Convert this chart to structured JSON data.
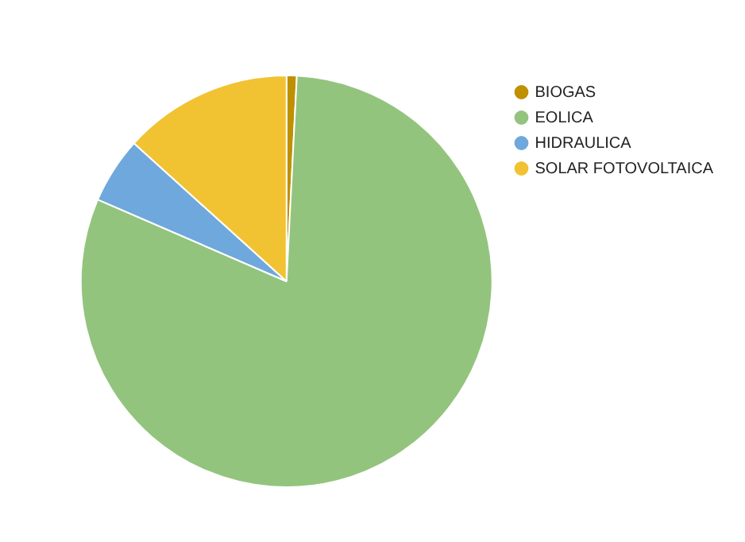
{
  "chart_data": {
    "type": "pie",
    "categories": [
      "BIOGAS",
      "EOLICA",
      "HIDRAULICA",
      "SOLAR FOTOVOLTAICA"
    ],
    "values": [
      0.8,
      80.7,
      5.2,
      13.3
    ],
    "colors": [
      "#bf9000",
      "#93c47d",
      "#6fa8dc",
      "#f1c232"
    ],
    "legend": "top right"
  }
}
